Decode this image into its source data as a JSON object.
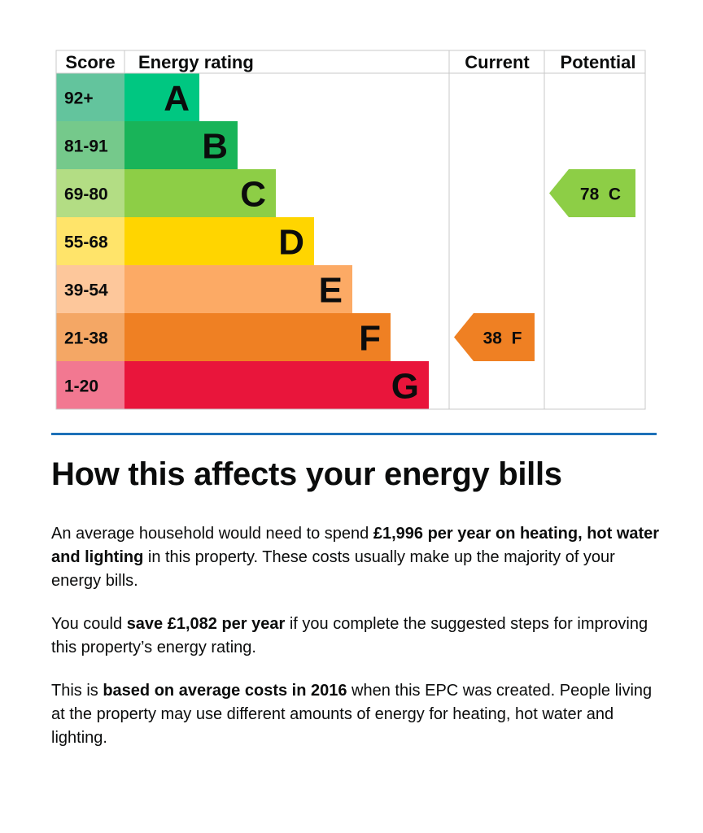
{
  "chart_data": {
    "type": "bar",
    "headers": {
      "score": "Score",
      "rating": "Energy rating",
      "current": "Current",
      "potential": "Potential"
    },
    "bands": [
      {
        "letter": "A",
        "range": "92+",
        "color": "#008054",
        "score_color": "#63c49d",
        "bar_color": "#00c781"
      },
      {
        "letter": "B",
        "range": "81-91",
        "color": "#19b459",
        "score_color": "#75c98b",
        "bar_color": "#19b459"
      },
      {
        "letter": "C",
        "range": "69-80",
        "color": "#8dce46",
        "score_color": "#b3dd84",
        "bar_color": "#8dce46"
      },
      {
        "letter": "D",
        "range": "55-68",
        "color": "#ffd500",
        "score_color": "#ffe46a",
        "bar_color": "#ffd500"
      },
      {
        "letter": "E",
        "range": "39-54",
        "color": "#fcaa65",
        "score_color": "#fdc79b",
        "bar_color": "#fcaa65"
      },
      {
        "letter": "F",
        "range": "21-38",
        "color": "#ef8023",
        "score_color": "#f4a765",
        "bar_color": "#ef8023"
      },
      {
        "letter": "G",
        "range": "1-20",
        "color": "#e9153b",
        "score_color": "#f27891",
        "bar_color": "#e9153b"
      }
    ],
    "current": {
      "score": 38,
      "band": "F",
      "label": "38  F",
      "color": "#ef8023"
    },
    "potential": {
      "score": 78,
      "band": "C",
      "label": "78  C",
      "color": "#8dce46"
    }
  },
  "bills": {
    "heading": "How this affects your energy bills",
    "p1": {
      "before": "An average household would need to spend ",
      "bold": "£1,996 per year on heating, hot water and lighting",
      "after": " in this property. These costs usually make up the majority of your energy bills."
    },
    "p2": {
      "before": "You could ",
      "bold": "save £1,082 per year",
      "after": " if you complete the suggested steps for improving this property’s energy rating."
    },
    "p3": {
      "before": "This is ",
      "bold": "based on average costs in 2016",
      "after": " when this EPC was created. People living at the property may use different amounts of energy for heating, hot water and lighting."
    }
  }
}
